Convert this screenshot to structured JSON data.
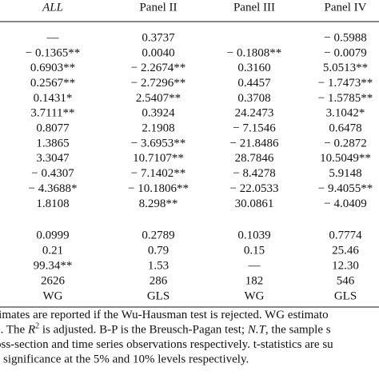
{
  "table": {
    "header": [
      {
        "text": "ALL",
        "italic": true
      },
      {
        "text": "Panel II"
      },
      {
        "text": "Panel III"
      },
      {
        "text": "Panel IV"
      }
    ],
    "rows": [
      [
        "—",
        "0.3737",
        null,
        "− 0.5988"
      ],
      [
        "− 0.1365**",
        "0.0040",
        "− 0.1808**",
        "− 0.0079"
      ],
      [
        "0.6903**",
        "− 2.2674**",
        "0.3160",
        "5.0513**"
      ],
      [
        "0.2567**",
        "− 2.7296**",
        "0.4457",
        "− 1.7473**"
      ],
      [
        "0.1431*",
        "2.5407**",
        "0.3708",
        "− 1.5785**"
      ],
      [
        "3.7111**",
        "0.3924",
        "24.2473",
        "3.1042*"
      ],
      [
        "0.8077",
        "2.1908",
        "− 7.1546",
        "0.6478"
      ],
      [
        "1.3865",
        "− 3.6953**",
        "− 21.8486",
        "− 0.2872"
      ],
      [
        "3.3047",
        "10.7107**",
        "28.7846",
        "10.5049**"
      ],
      [
        "− 0.4307",
        "− 7.1402**",
        "− 8.4278",
        "5.9148"
      ],
      [
        "− 4.3688*",
        "− 10.1806**",
        "− 22.0533",
        "− 9.4055**"
      ],
      [
        "1.8108",
        "8.298**",
        "30.0861",
        "− 4.0409"
      ]
    ],
    "stats_rows": [
      [
        "0.0999",
        "0.2789",
        "0.1039",
        "0.7774"
      ],
      [
        "0.21",
        "0.79",
        "0.15",
        "25.46"
      ],
      [
        "99.34**",
        "1.53",
        "—",
        "12.30"
      ],
      [
        "2626",
        "286",
        "182",
        "546"
      ],
      [
        "WG",
        "GLS",
        "WG",
        "GLS"
      ]
    ]
  },
  "notes": [
    [
      {
        "text": "timates are reported if the Wu-Hausman test is rejected. WG estimato"
      }
    ],
    [
      {
        "text": "e. The "
      },
      {
        "text": "R",
        "italic": true
      },
      {
        "text": "2",
        "sup": true
      },
      {
        "text": " is adjusted. B-P is the Breusch-Pagan test; "
      },
      {
        "text": "N.T",
        "italic": true
      },
      {
        "text": ", the sample s"
      }
    ],
    [
      {
        "text": "oss-section and time series observations respectively. t-statistics are su"
      }
    ],
    [
      {
        "text": "significance at the 5% and 10% levels respectively."
      }
    ]
  ]
}
